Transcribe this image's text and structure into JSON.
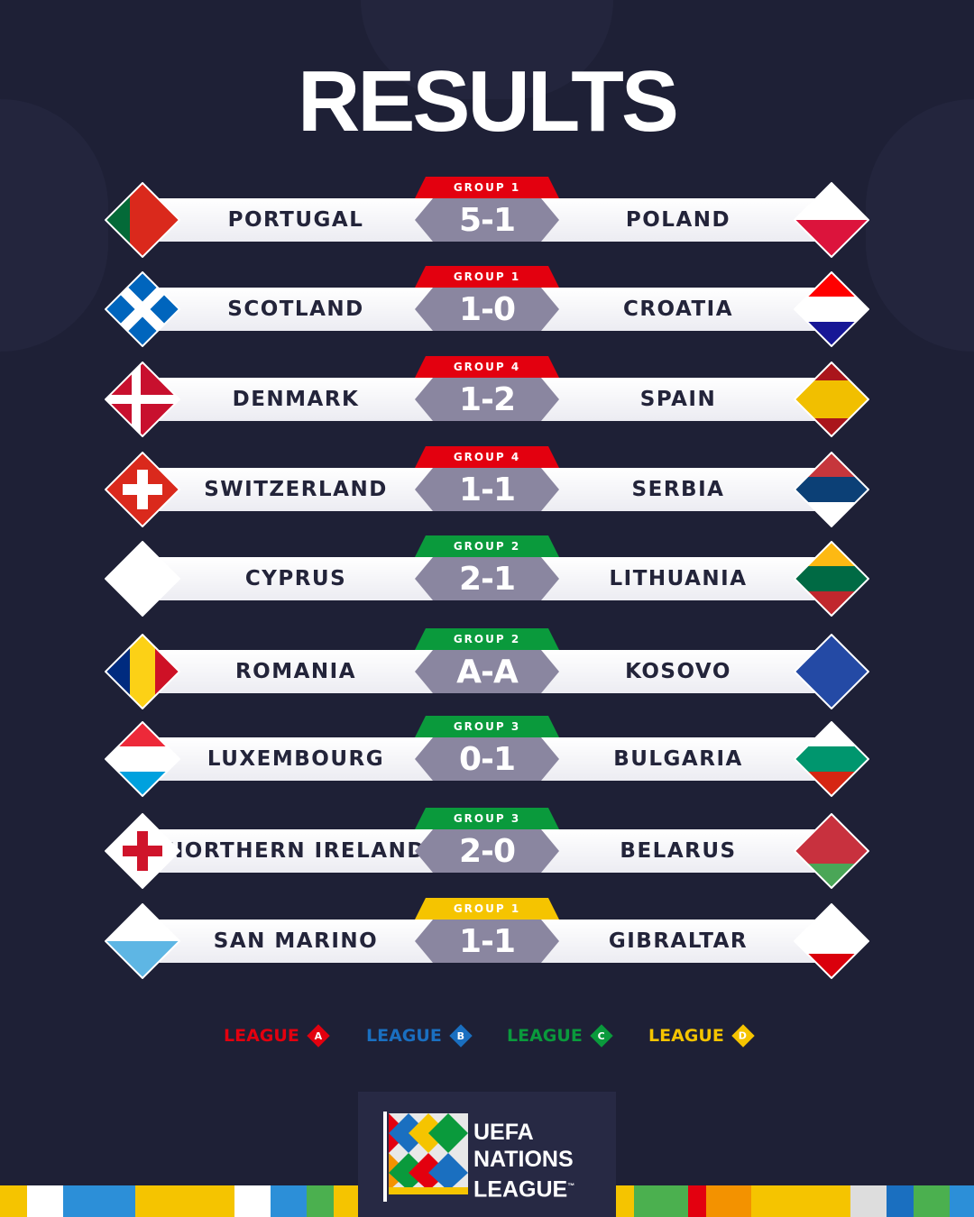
{
  "title": "RESULTS",
  "league_colors": {
    "A": "#e3000f",
    "B": "#1a6fc0",
    "C": "#0a9a3c",
    "D": "#f5c400"
  },
  "matches": [
    {
      "group": "GROUP 1",
      "league": "A",
      "home": "PORTUGAL",
      "score": "5-1",
      "away": "POLAND",
      "home_flag": {
        "kind": "v",
        "colors": [
          "#046a38",
          "#da291c",
          "#da291c"
        ]
      },
      "away_flag": {
        "kind": "h",
        "colors": [
          "#ffffff",
          "#dc143c"
        ]
      }
    },
    {
      "group": "GROUP 1",
      "league": "A",
      "home": "SCOTLAND",
      "score": "1-0",
      "away": "CROATIA",
      "home_flag": {
        "kind": "saltire",
        "colors": [
          "#0065bd",
          "#ffffff"
        ]
      },
      "away_flag": {
        "kind": "h",
        "colors": [
          "#ff0000",
          "#ffffff",
          "#171796"
        ]
      }
    },
    {
      "group": "GROUP 4",
      "league": "A",
      "home": "DENMARK",
      "score": "1-2",
      "away": "SPAIN",
      "home_flag": {
        "kind": "nordic",
        "colors": [
          "#c8102e",
          "#ffffff"
        ]
      },
      "away_flag": {
        "kind": "h",
        "colors": [
          "#aa151b",
          "#f1bf00",
          "#f1bf00",
          "#aa151b"
        ]
      }
    },
    {
      "group": "GROUP 4",
      "league": "A",
      "home": "SWITZERLAND",
      "score": "1-1",
      "away": "SERBIA",
      "home_flag": {
        "kind": "cross",
        "colors": [
          "#da291c",
          "#ffffff"
        ]
      },
      "away_flag": {
        "kind": "h",
        "colors": [
          "#c6363c",
          "#0c4076",
          "#ffffff"
        ]
      }
    },
    {
      "group": "GROUP 2",
      "league": "C",
      "home": "CYPRUS",
      "score": "2-1",
      "away": "LITHUANIA",
      "home_flag": {
        "kind": "h",
        "colors": [
          "#ffffff"
        ]
      },
      "away_flag": {
        "kind": "h",
        "colors": [
          "#fdb913",
          "#006a44",
          "#c1272d"
        ]
      }
    },
    {
      "group": "GROUP 2",
      "league": "C",
      "home": "ROMANIA",
      "score": "A-A",
      "away": "KOSOVO",
      "home_flag": {
        "kind": "v",
        "colors": [
          "#002b7f",
          "#fcd116",
          "#ce1126"
        ]
      },
      "away_flag": {
        "kind": "h",
        "colors": [
          "#244aa5"
        ]
      }
    },
    {
      "group": "GROUP 3",
      "league": "C",
      "home": "LUXEMBOURG",
      "score": "0-1",
      "away": "BULGARIA",
      "home_flag": {
        "kind": "h",
        "colors": [
          "#ed2939",
          "#ffffff",
          "#00a1de"
        ]
      },
      "away_flag": {
        "kind": "h",
        "colors": [
          "#ffffff",
          "#00966e",
          "#d62612"
        ]
      }
    },
    {
      "group": "GROUP 3",
      "league": "C",
      "home": "NORTHERN IRELAND",
      "score": "2-0",
      "away": "BELARUS",
      "home_flag": {
        "kind": "cross",
        "colors": [
          "#ffffff",
          "#cf142b"
        ]
      },
      "away_flag": {
        "kind": "h",
        "colors": [
          "#c8313e",
          "#c8313e",
          "#4aa657"
        ]
      }
    },
    {
      "group": "GROUP 1",
      "league": "D",
      "home": "SAN MARINO",
      "score": "1-1",
      "away": "GIBRALTAR",
      "home_flag": {
        "kind": "h",
        "colors": [
          "#ffffff",
          "#5eb6e4"
        ]
      },
      "away_flag": {
        "kind": "h",
        "colors": [
          "#ffffff",
          "#ffffff",
          "#da000c"
        ]
      }
    }
  ],
  "legend": [
    {
      "label": "LEAGUE",
      "letter": "A"
    },
    {
      "label": "LEAGUE",
      "letter": "B"
    },
    {
      "label": "LEAGUE",
      "letter": "C"
    },
    {
      "label": "LEAGUE",
      "letter": "D"
    }
  ],
  "logo": {
    "lines": [
      "UEFA",
      "NATIONS",
      "LEAGUE"
    ],
    "trademark": "™"
  }
}
